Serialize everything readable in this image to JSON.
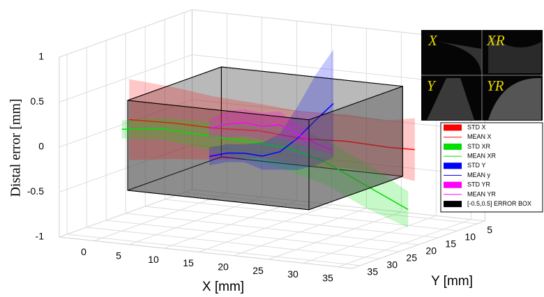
{
  "chart_data": {
    "type": "line3d",
    "zlabel": "Distal  error  [mm]",
    "xlabel": "X [mm]",
    "ylabel": "Y [mm]",
    "xlim": [
      -5,
      37
    ],
    "ylim": [
      3,
      37
    ],
    "zlim": [
      -1,
      1
    ],
    "xticks": [
      0,
      5,
      10,
      15,
      20,
      25,
      30,
      35
    ],
    "yticks": [
      5,
      10,
      15,
      20,
      25,
      30,
      35
    ],
    "zticks": [
      -1,
      -0.5,
      0,
      0.5,
      1
    ],
    "grid": true,
    "series": [
      {
        "std_name": "STD X",
        "mean_name": "MEAN X",
        "color": "#ff0000",
        "x": [
          2,
          7,
          12,
          17,
          22,
          27,
          32,
          35
        ],
        "y": [
          31.6,
          29.4,
          27.3,
          25.1,
          23.0,
          20.8,
          18.7,
          17.4
        ],
        "values": [
          0.28,
          0.25,
          0.2,
          0.18,
          0.1,
          0.08,
          0.02,
          0.0
        ],
        "std": [
          0.45,
          0.4,
          0.35,
          0.3,
          0.3,
          0.3,
          0.3,
          0.35
        ]
      },
      {
        "std_name": "STD XR",
        "mean_name": "MEAN XR",
        "color": "#00e000",
        "x": [
          0,
          5,
          10,
          15,
          20,
          25,
          30,
          35
        ],
        "y": [
          29.9,
          28.4,
          26.8,
          25.3,
          23.7,
          22.2,
          20.6,
          19.1
        ],
        "values": [
          0.13,
          0.15,
          0.1,
          0.05,
          0.0,
          -0.15,
          -0.4,
          -0.64
        ],
        "std": [
          0.1,
          0.12,
          0.15,
          0.2,
          0.25,
          0.25,
          0.25,
          0.2
        ]
      },
      {
        "std_name": "STD Y",
        "mean_name": "MEAN y",
        "color": "#0000ff",
        "x": [
          10,
          12,
          14,
          16,
          18,
          20,
          22,
          24
        ],
        "y": [
          25.4,
          24.4,
          23.5,
          22.5,
          21.6,
          20.7,
          19.7,
          18.6
        ],
        "values": [
          -0.16,
          -0.12,
          -0.12,
          -0.15,
          -0.1,
          0.05,
          0.25,
          0.44
        ],
        "std": [
          0.1,
          0.1,
          0.1,
          0.15,
          0.2,
          0.35,
          0.5,
          0.6
        ]
      },
      {
        "std_name": "STD YR",
        "mean_name": "MEAN YR",
        "color": "#ff00ff",
        "x": [
          10,
          12,
          14,
          16,
          18,
          20,
          22,
          24
        ],
        "y": [
          25.4,
          24.4,
          23.5,
          22.5,
          21.6,
          20.7,
          19.7,
          18.6
        ],
        "values": [
          0.15,
          0.2,
          0.22,
          0.18,
          0.2,
          0.1,
          0.0,
          -0.08
        ],
        "std": [
          0.1,
          0.15,
          0.15,
          0.15,
          0.15,
          0.1,
          0.08,
          0.05
        ]
      }
    ],
    "error_box": {
      "name": "[-0.5,0.5] ERROR BOX",
      "color": "#000000",
      "x": [
        2,
        28
      ],
      "y": [
        8,
        32
      ],
      "z": [
        -0.5,
        0.5
      ]
    },
    "inset": {
      "labels": [
        "X",
        "XR",
        "Y",
        "YR"
      ]
    }
  }
}
